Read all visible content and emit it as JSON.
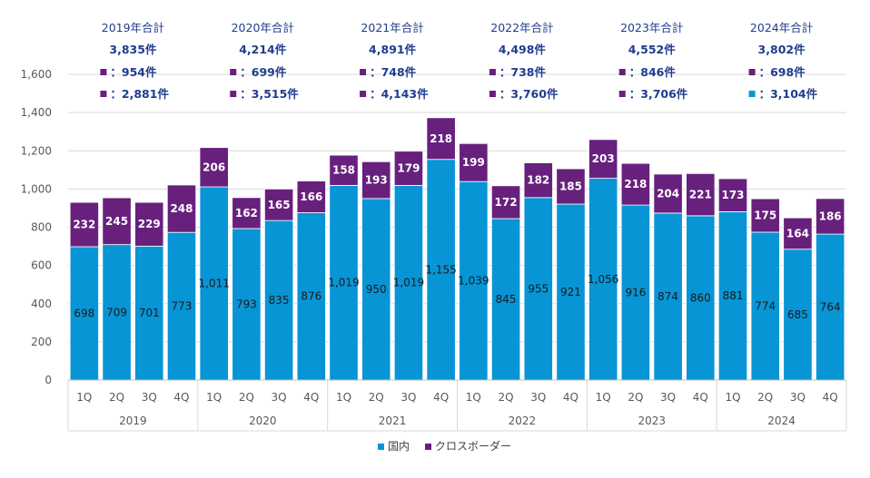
{
  "chart_data": {
    "type": "bar",
    "stacked": true,
    "ylim": [
      0,
      1600
    ],
    "yticks": [
      0,
      200,
      400,
      600,
      800,
      1000,
      1200,
      1400,
      1600
    ],
    "ytick_labels": [
      "0",
      "200",
      "400",
      "600",
      "800",
      "1,000",
      "1,200",
      "1,400",
      "1,600"
    ],
    "grid": true,
    "categories": [
      "1Q",
      "2Q",
      "3Q",
      "4Q",
      "1Q",
      "2Q",
      "3Q",
      "4Q",
      "1Q",
      "2Q",
      "3Q",
      "4Q",
      "1Q",
      "2Q",
      "3Q",
      "4Q",
      "1Q",
      "2Q",
      "3Q",
      "4Q",
      "1Q",
      "2Q",
      "3Q",
      "4Q"
    ],
    "groups": [
      "2019",
      "2020",
      "2021",
      "2022",
      "2023",
      "2024"
    ],
    "series": [
      {
        "name": "国内",
        "color": "#0795d6",
        "values": [
          698,
          709,
          701,
          773,
          1011,
          793,
          835,
          876,
          1019,
          950,
          1019,
          1155,
          1039,
          845,
          955,
          921,
          1056,
          916,
          874,
          860,
          881,
          774,
          685,
          764
        ],
        "labels": [
          "698",
          "709",
          "701",
          "773",
          "1,011",
          "793",
          "835",
          "876",
          "1,019",
          "950",
          "1,019",
          "1,155",
          "1,039",
          "845",
          "955",
          "921",
          "1,056",
          "916",
          "874",
          "860",
          "881",
          "774",
          "685",
          "764"
        ]
      },
      {
        "name": "クロスボーダー",
        "color": "#68207d",
        "values": [
          232,
          245,
          229,
          248,
          206,
          162,
          165,
          166,
          158,
          193,
          179,
          218,
          199,
          172,
          182,
          185,
          203,
          218,
          204,
          221,
          173,
          175,
          164,
          186
        ],
        "labels": [
          "232",
          "245",
          "229",
          "248",
          "206",
          "162",
          "165",
          "166",
          "158",
          "193",
          "179",
          "218",
          "199",
          "172",
          "182",
          "185",
          "203",
          "218",
          "204",
          "221",
          "173",
          "175",
          "164",
          "186"
        ]
      }
    ],
    "legend": {
      "position": "bottom"
    },
    "annotations": [
      {
        "title": "2019年合計",
        "total": "3,835件",
        "line1": "：954件",
        "line1_color": "#68207d",
        "line2": "：2,881件",
        "line2_color": "#68207d"
      },
      {
        "title": "2020年合計",
        "total": "4,214件",
        "line1": "：699件",
        "line1_color": "#68207d",
        "line2": "：3,515件",
        "line2_color": "#68207d"
      },
      {
        "title": "2021年合計",
        "total": "4,891件",
        "line1": "：748件",
        "line1_color": "#68207d",
        "line2": "：4,143件",
        "line2_color": "#68207d"
      },
      {
        "title": "2022年合計",
        "total": "4,498件",
        "line1": "：738件",
        "line1_color": "#68207d",
        "line2": "：3,760件",
        "line2_color": "#68207d"
      },
      {
        "title": "2023年合計",
        "total": "4,552件",
        "line1": "：846件",
        "line1_color": "#68207d",
        "line2": "：3,706件",
        "line2_color": "#68207d"
      },
      {
        "title": "2024年合計",
        "total": "3,802件",
        "line1": "：698件",
        "line1_color": "#68207d",
        "line2": "：3,104件",
        "line2_color": "#0795d6"
      }
    ]
  }
}
